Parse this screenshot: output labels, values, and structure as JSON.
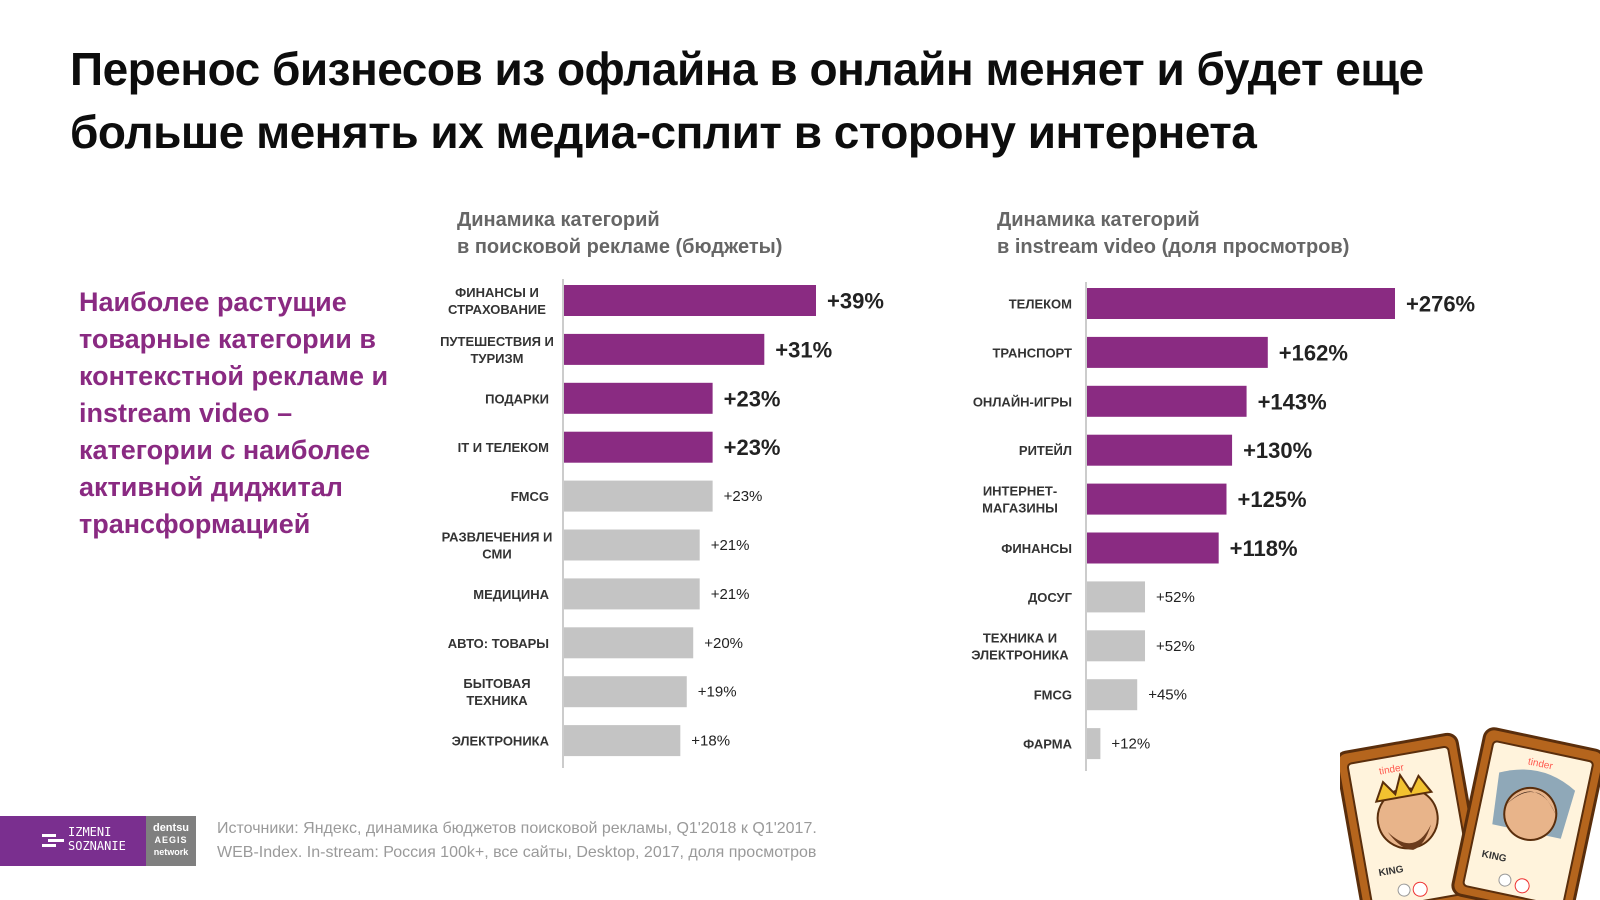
{
  "title": "Перенос бизнесов из офлайна в онлайн меняет и будет еще больше менять их медиа-сплит в сторону интернета",
  "subtitle": "Наиболее растущие товарные категории в контекстной рекламе и instream video – категории с наиболее активной диджитал трансформацией",
  "colors": {
    "highlight": "#8a2b82",
    "other": "#c4c4c4",
    "subtitle": "#8a2a82",
    "footer_purple": "#7a2f8f"
  },
  "chart_data": [
    {
      "type": "bar",
      "orientation": "horizontal",
      "title": "Динамика категорий в поисковой рекламе (бюджеты)",
      "categories": [
        "ФИНАНСЫ И СТРАХОВАНИЕ",
        "ПУТЕШЕСТВИЯ И ТУРИЗМ",
        "ПОДАРКИ",
        "IT И ТЕЛЕКОМ",
        "FMCG",
        "РАЗВЛЕЧЕНИЯ И СМИ",
        "МЕДИЦИНА",
        "АВТО: ТОВАРЫ",
        "БЫТОВАЯ ТЕХНИКА",
        "ЭЛЕКТРОНИКА"
      ],
      "values": [
        39,
        31,
        23,
        23,
        23,
        21,
        21,
        20,
        19,
        18
      ],
      "labels": [
        "+39%",
        "+31%",
        "+23%",
        "+23%",
        "+23%",
        "+21%",
        "+21%",
        "+20%",
        "+19%",
        "+18%"
      ],
      "highlighted": [
        true,
        true,
        true,
        true,
        false,
        false,
        false,
        false,
        false,
        false
      ],
      "unit": "%"
    },
    {
      "type": "bar",
      "orientation": "horizontal",
      "title": "Динамика категорий в instream video (доля просмотров)",
      "categories": [
        "ТЕЛЕКОМ",
        "ТРАНСПОРТ",
        "ОНЛАЙН-ИГРЫ",
        "РИТЕЙЛ",
        "ИНТЕРНЕТ-МАГАЗИНЫ",
        "ФИНАНСЫ",
        "ДОСУГ",
        "ТЕХНИКА И ЭЛЕКТРОНИКА",
        "FMCG",
        "ФАРМА"
      ],
      "values": [
        276,
        162,
        143,
        130,
        125,
        118,
        52,
        52,
        45,
        12
      ],
      "labels": [
        "+276%",
        "+162%",
        "+143%",
        "+130%",
        "+125%",
        "+118%",
        "+52%",
        "+52%",
        "+45%",
        "+12%"
      ],
      "highlighted": [
        true,
        true,
        true,
        true,
        true,
        true,
        false,
        false,
        false,
        false
      ],
      "unit": "%"
    }
  ],
  "footer": {
    "logo1_line1": "IZMENI",
    "logo1_line2": "SOZNANIE",
    "logo2_line1": "dentsu",
    "logo2_line2": "AEGIS",
    "logo2_line3": "network",
    "source_line1": "Источники: Яндекс, динамика бюджетов поисковой рекламы, Q1'2018 к Q1'2017.",
    "source_line2": "WEB-Index. In-stream: Россия 100k+, все сайты, Desktop, 2017, доля просмотров"
  },
  "illustration": {
    "card1_brand": "tinder",
    "card1_name": "KING",
    "card2_brand": "tinder",
    "card2_name": "KING"
  }
}
